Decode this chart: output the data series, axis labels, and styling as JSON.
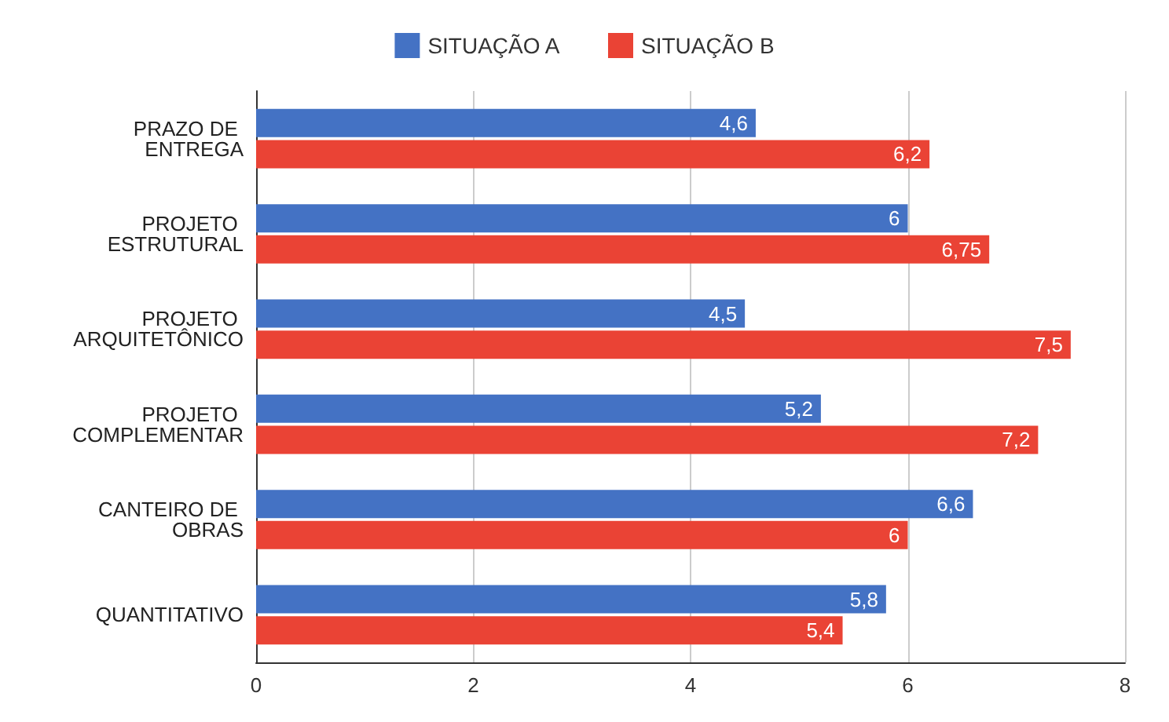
{
  "chart_data": {
    "type": "bar",
    "orientation": "horizontal",
    "categories": [
      "PRAZO DE ENTREGA",
      "PROJETO ESTRUTURAL",
      "PROJETO ARQUITETÔNICO",
      "PROJETO COMPLEMENTAR",
      "CANTEIRO DE OBRAS",
      "QUANTITATIVO"
    ],
    "series": [
      {
        "name": "SITUAÇÃO A",
        "color": "#4472c4",
        "values": [
          4.6,
          6,
          4.5,
          5.2,
          6.6,
          5.8
        ],
        "value_labels": [
          "4,6",
          "6",
          "4,5",
          "5,2",
          "6,6",
          "5,8"
        ]
      },
      {
        "name": "SITUAÇÃO B",
        "color": "#ea4335",
        "values": [
          6.2,
          6.75,
          7.5,
          7.2,
          6,
          5.4
        ],
        "value_labels": [
          "6,2",
          "6,75",
          "7,5",
          "7,2",
          "6",
          "5,4"
        ]
      }
    ],
    "xlim": [
      0,
      8
    ],
    "xticks": [
      0,
      2,
      4,
      6,
      8
    ],
    "grid": "x",
    "legend": "top"
  }
}
